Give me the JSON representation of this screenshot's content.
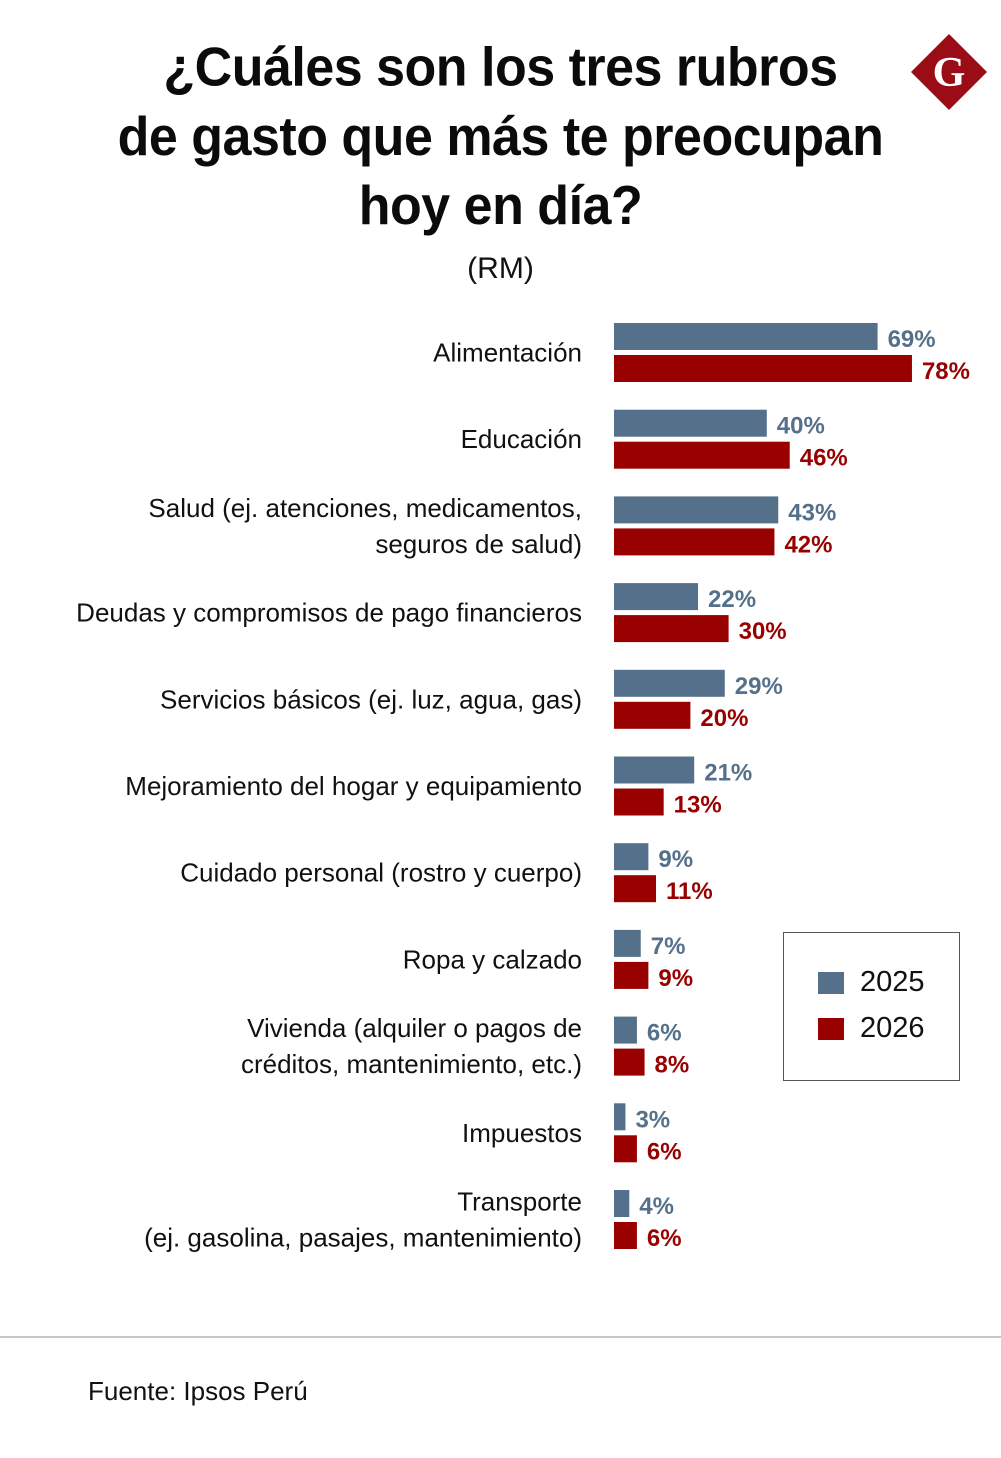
{
  "header": {
    "title_lines": [
      "¿Cuáles son los tres rubros",
      "de gasto que más te preocupan",
      "hoy en día?"
    ],
    "subtitle": "(RM)",
    "logo": {
      "icon": "g-diamond-logo-icon",
      "letter": "G",
      "color": "#9b0d16"
    }
  },
  "colors": {
    "2025": "#55708a",
    "2026": "#990000"
  },
  "chart_data": {
    "type": "bar",
    "orientation": "horizontal",
    "title": "¿Cuáles son los tres rubros de gasto que más te preocupan hoy en día?",
    "subtitle": "(RM)",
    "xlabel": "",
    "ylabel": "",
    "unit": "%",
    "xlim": [
      0,
      80
    ],
    "grid": false,
    "legend_position": "right",
    "categories": [
      [
        "Alimentación"
      ],
      [
        "Educación"
      ],
      [
        "Salud (ej. atenciones, medicamentos,",
        "seguros de salud)"
      ],
      [
        "Deudas y compromisos de pago financieros"
      ],
      [
        "Servicios básicos (ej. luz, agua, gas)"
      ],
      [
        "Mejoramiento del hogar y equipamiento"
      ],
      [
        "Cuidado personal (rostro y cuerpo)"
      ],
      [
        "Ropa y calzado"
      ],
      [
        "Vivienda (alquiler o pagos de",
        "créditos, mantenimiento, etc.)"
      ],
      [
        "Impuestos"
      ],
      [
        "Transporte",
        "(ej. gasolina, pasajes, mantenimiento)"
      ]
    ],
    "series": [
      {
        "name": "2025",
        "color": "#55708a",
        "values": [
          69,
          40,
          43,
          22,
          29,
          21,
          9,
          7,
          6,
          3,
          4
        ]
      },
      {
        "name": "2026",
        "color": "#990000",
        "values": [
          78,
          46,
          42,
          30,
          20,
          13,
          11,
          9,
          8,
          6,
          6
        ]
      }
    ]
  },
  "legend": {
    "items": [
      {
        "label": "2025",
        "color": "#55708a"
      },
      {
        "label": "2026",
        "color": "#990000"
      }
    ]
  },
  "footer": {
    "source": "Fuente: Ipsos Perú"
  }
}
